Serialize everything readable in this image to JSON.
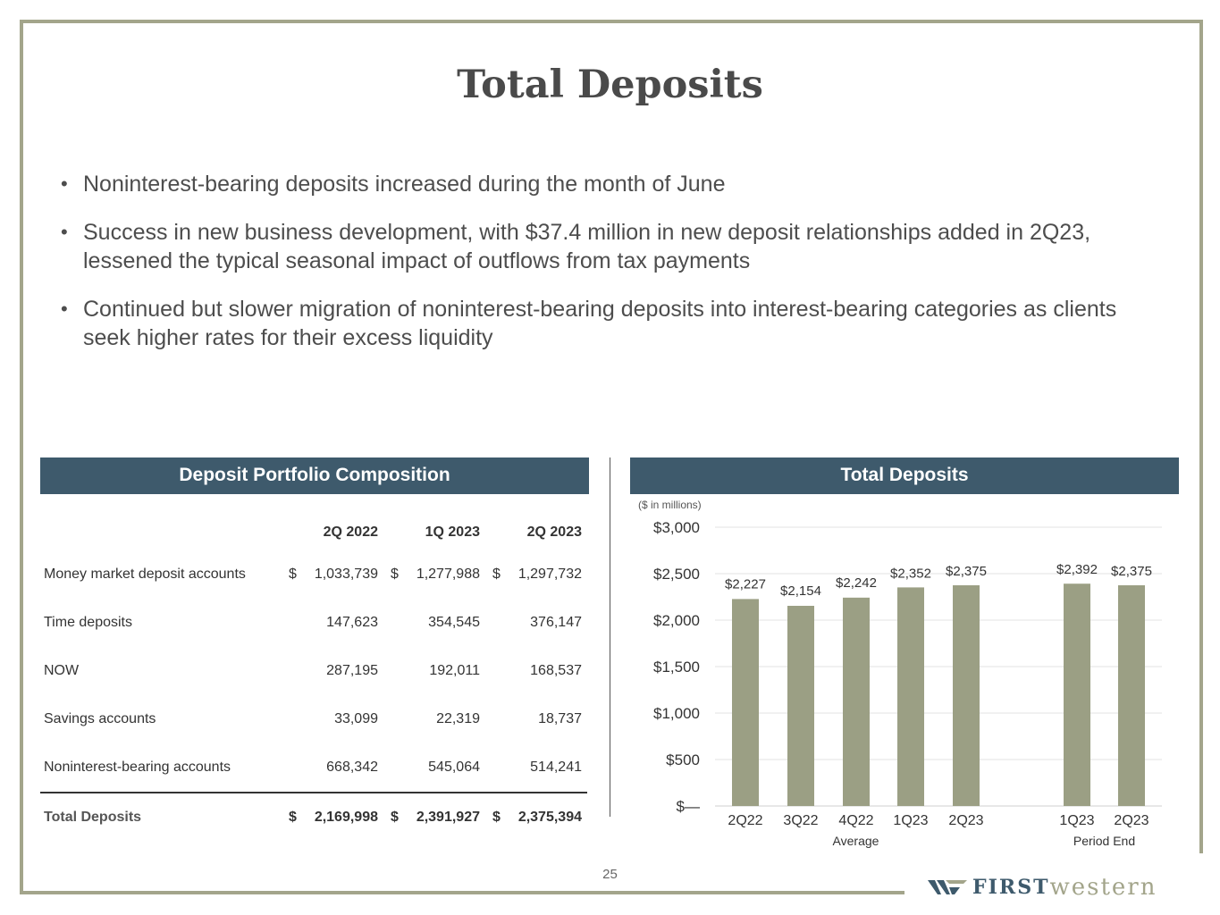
{
  "title": "Total Deposits",
  "bullets": [
    "Noninterest-bearing deposits increased during the month of June",
    "Success in new business development, with $37.4 million in new deposit relationships added in 2Q23, lessened the typical seasonal impact of outflows from tax payments",
    "Continued but slower migration of noninterest-bearing deposits into interest-bearing categories as clients seek higher rates for their excess liquidity"
  ],
  "bullet_symbol": "•",
  "left_panel": {
    "title": "Deposit Portfolio Composition",
    "columns": [
      "2Q 2022",
      "1Q 2023",
      "2Q 2023"
    ],
    "currency_symbol": "$",
    "rows": [
      {
        "label": "Money market deposit accounts",
        "values": [
          "1,033,739",
          "1,277,988",
          "1,297,732"
        ]
      },
      {
        "label": "Time deposits",
        "values": [
          "147,623",
          "354,545",
          "376,147"
        ]
      },
      {
        "label": "NOW",
        "values": [
          "287,195",
          "192,011",
          "168,537"
        ]
      },
      {
        "label": "Savings accounts",
        "values": [
          "33,099",
          "22,319",
          "18,737"
        ]
      },
      {
        "label": "Noninterest-bearing accounts",
        "values": [
          "668,342",
          "545,064",
          "514,241"
        ]
      }
    ],
    "total": {
      "label": "Total Deposits",
      "values": [
        "2,169,998",
        "2,391,927",
        "2,375,394"
      ]
    }
  },
  "right_panel": {
    "title": "Total Deposits",
    "units": "($ in millions)"
  },
  "chart_data": {
    "type": "bar",
    "title": "Total Deposits",
    "categories": [
      "2Q22",
      "3Q22",
      "4Q22",
      "1Q23",
      "2Q23",
      "1Q23",
      "2Q23"
    ],
    "values": [
      2227,
      2154,
      2242,
      2352,
      2375,
      2392,
      2375
    ],
    "data_labels": [
      "$2,227",
      "$2,154",
      "$2,242",
      "$2,352",
      "$2,375",
      "$2,392",
      "$2,375"
    ],
    "groups": [
      {
        "name": "Average",
        "category_indices": [
          0,
          1,
          2,
          3,
          4
        ]
      },
      {
        "name": "Period End",
        "category_indices": [
          5,
          6
        ]
      }
    ],
    "yticks": [
      0,
      500,
      1000,
      1500,
      2000,
      2500,
      3000
    ],
    "ytick_labels": [
      "$—",
      "$500",
      "$1,000",
      "$1,500",
      "$2,000",
      "$2,500",
      "$3,000"
    ],
    "ylim": [
      0,
      3000
    ],
    "ylabel": "($ in millions)",
    "grid": true,
    "bar_color": "#9b9f84"
  },
  "page_number": "25",
  "logo": {
    "first": "FIRST",
    "western": "western",
    "brand_navy": "#3e5a6c",
    "brand_sage": "#a3a58b"
  }
}
